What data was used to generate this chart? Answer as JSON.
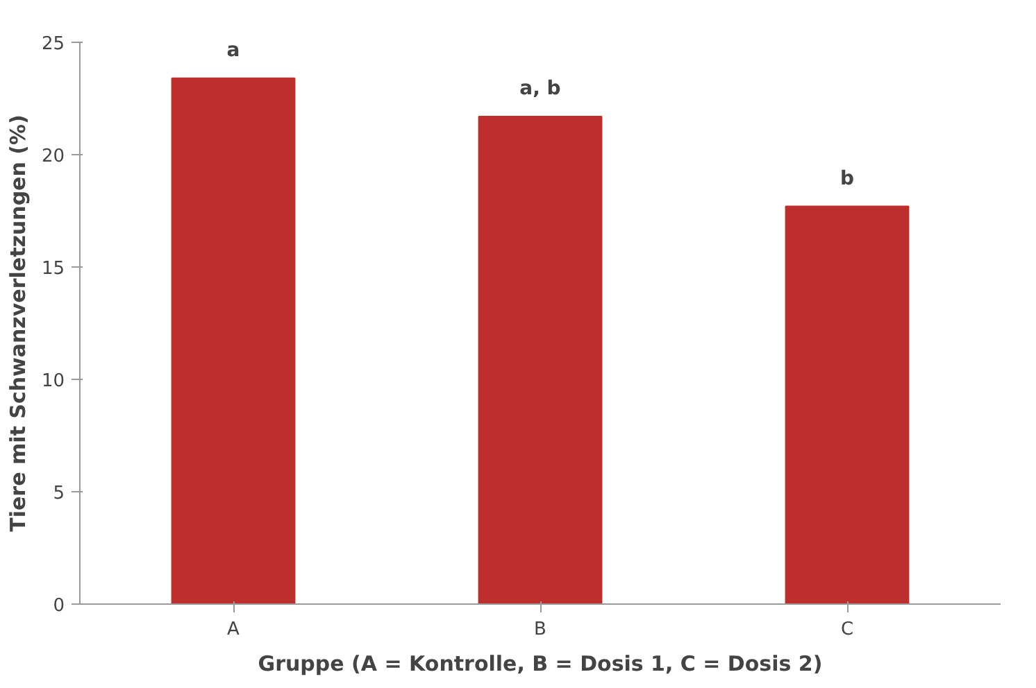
{
  "chart_data": {
    "type": "bar",
    "xlabel": "Gruppe (A = Kontrolle, B = Dosis 1, C = Dosis 2)",
    "ylabel": "Tiere mit Schwanzverletzungen (%)",
    "categories": [
      "A",
      "B",
      "C"
    ],
    "values": [
      23.4,
      21.7,
      17.7
    ],
    "color": "#bd2f2c",
    "ylim": [
      0,
      25
    ],
    "yticks": [
      0,
      5,
      10,
      15,
      20,
      25
    ],
    "grid": false,
    "annotations": [
      {
        "text": "a",
        "x": "A",
        "y": 23.4
      },
      {
        "text": "a, b",
        "x": "B",
        "y": 21.7
      },
      {
        "text": "b",
        "x": "C",
        "y": 17.7
      }
    ]
  }
}
